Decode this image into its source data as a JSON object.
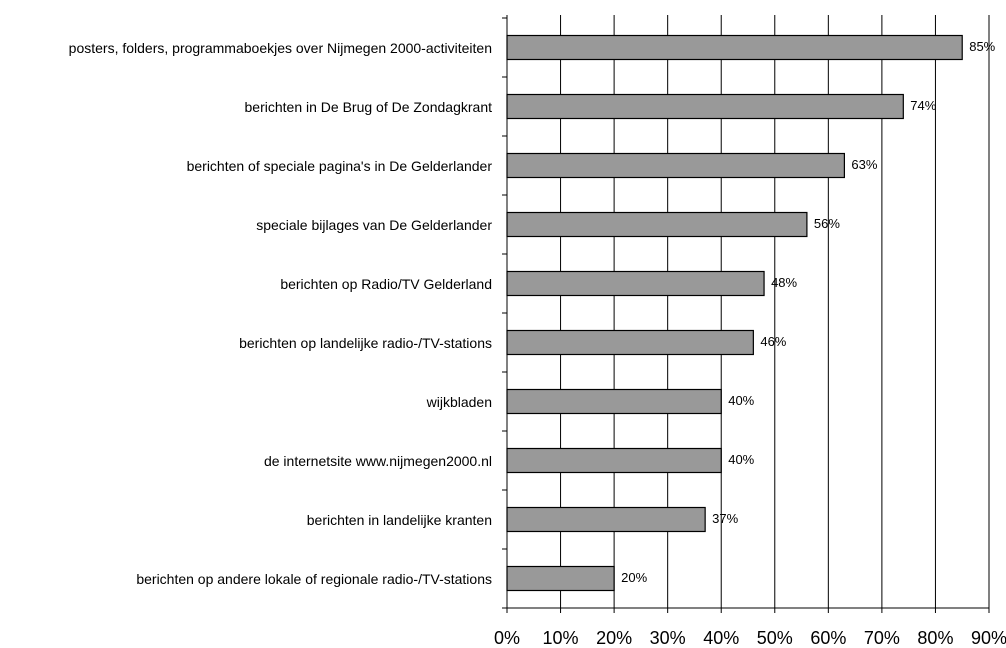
{
  "chart_data": {
    "type": "bar",
    "orientation": "horizontal",
    "categories": [
      "posters, folders, programmaboekjes over Nijmegen 2000-activiteiten",
      "berichten in De Brug of De Zondagkrant",
      "berichten of speciale pagina's in De Gelderlander",
      "speciale bijlages van De Gelderlander",
      "berichten op Radio/TV Gelderland",
      "berichten op landelijke radio-/TV-stations",
      "wijkbladen",
      "de internetsite www.nijmegen2000.nl",
      "berichten in landelijke kranten",
      "berichten op andere lokale of regionale radio-/TV-stations"
    ],
    "values": [
      85,
      74,
      63,
      56,
      48,
      46,
      40,
      40,
      37,
      20
    ],
    "value_labels": [
      "85%",
      "74%",
      "63%",
      "56%",
      "48%",
      "46%",
      "40%",
      "40%",
      "37%",
      "20%"
    ],
    "color": "#999999",
    "xlim": [
      0,
      90
    ],
    "xticks": [
      {
        "value": 0,
        "label": "0%"
      },
      {
        "value": 10,
        "label": "10%"
      },
      {
        "value": 20,
        "label": "20%"
      },
      {
        "value": 30,
        "label": "30%"
      },
      {
        "value": 40,
        "label": "40%"
      },
      {
        "value": 50,
        "label": "50%"
      },
      {
        "value": 60,
        "label": "60%"
      },
      {
        "value": 70,
        "label": "70%"
      },
      {
        "value": 80,
        "label": "80%"
      },
      {
        "value": 90,
        "label": "90%"
      }
    ],
    "grid": true
  }
}
